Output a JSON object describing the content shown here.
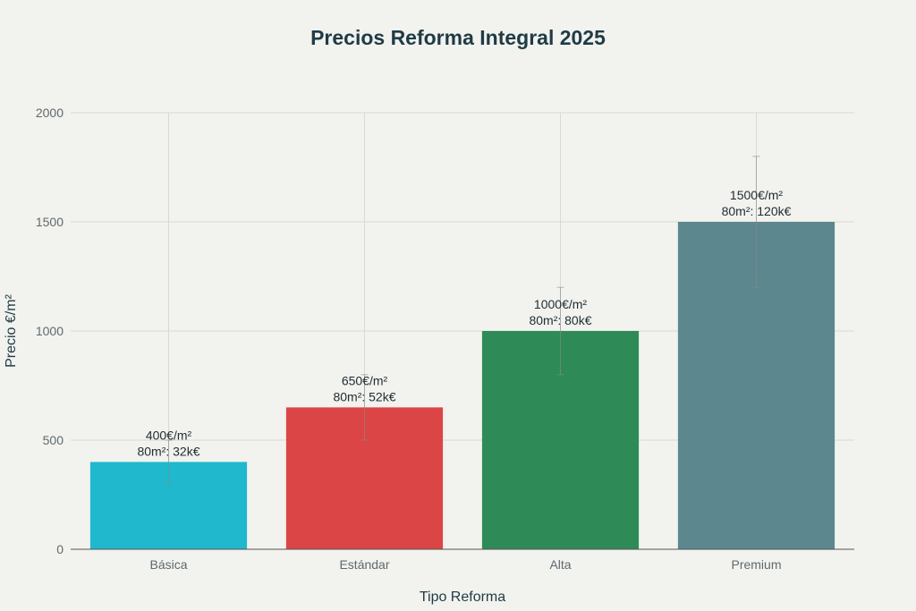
{
  "chart_data": {
    "type": "bar",
    "title": "Precios Reforma Integral 2025",
    "xlabel": "Tipo Reforma",
    "ylabel": "Precio €/m²",
    "ylim": [
      0,
      2000
    ],
    "yticks": [
      0,
      500,
      1000,
      1500,
      2000
    ],
    "grid": true,
    "categories": [
      "Básica",
      "Estándar",
      "Alta",
      "Premium"
    ],
    "values": [
      400,
      650,
      1000,
      1500
    ],
    "error_low": [
      300,
      500,
      800,
      1200
    ],
    "error_high": [
      500,
      800,
      1200,
      1800
    ],
    "colors": [
      "#1fb8cd",
      "#db4545",
      "#2e8b57",
      "#5d878f"
    ],
    "data_labels": [
      [
        "400€/m²",
        "80m²: 32k€"
      ],
      [
        "650€/m²",
        "80m²: 52k€"
      ],
      [
        "1000€/m²",
        "80m²: 80k€"
      ],
      [
        "1500€/m²",
        "80m²: 120k€"
      ]
    ]
  }
}
